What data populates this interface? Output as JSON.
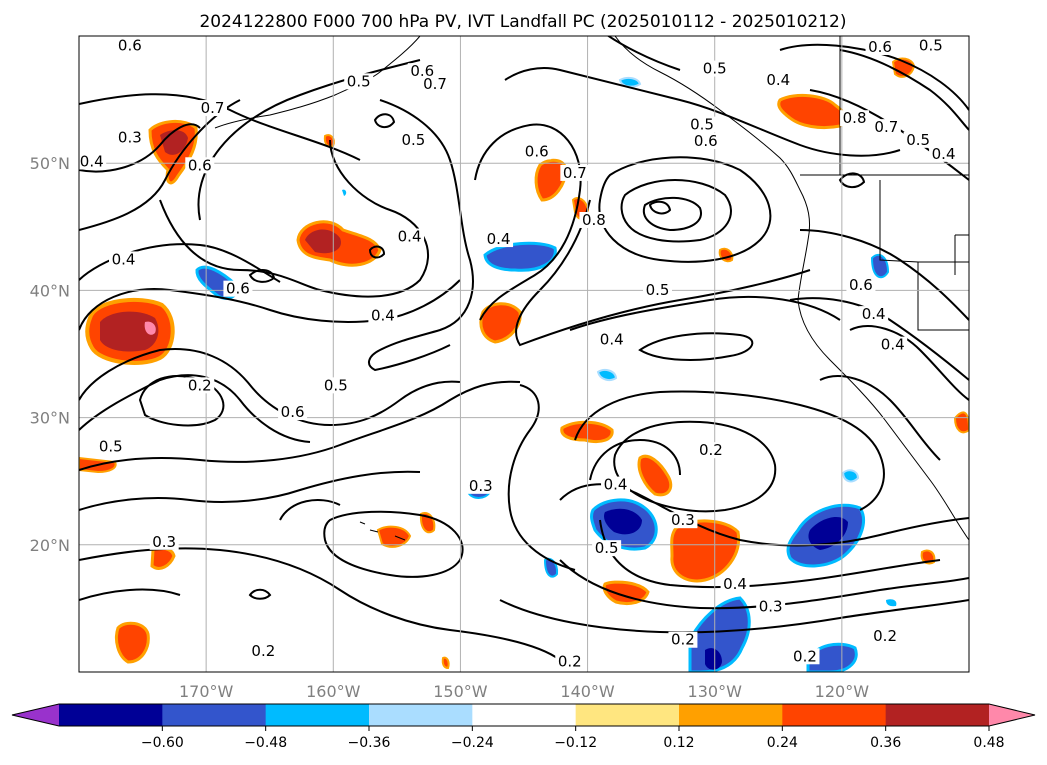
{
  "chart_data": {
    "type": "map",
    "title": "2024122800 F000 700 hPa PV, IVT Landfall PC (2025010112 - 2025010212)",
    "map_extent": {
      "lon": [
        -180,
        -110
      ],
      "lat": [
        10,
        60
      ]
    },
    "grid": true,
    "lon_ticks": [
      {
        "value": -170,
        "label": "170°W"
      },
      {
        "value": -160,
        "label": "160°W"
      },
      {
        "value": -150,
        "label": "150°W"
      },
      {
        "value": -140,
        "label": "140°W"
      },
      {
        "value": -130,
        "label": "130°W"
      },
      {
        "value": -120,
        "label": "120°W"
      }
    ],
    "lat_ticks": [
      {
        "value": 50,
        "label": "50°N"
      },
      {
        "value": 40,
        "label": "40°N"
      },
      {
        "value": 30,
        "label": "30°N"
      },
      {
        "value": 20,
        "label": "20°N"
      }
    ],
    "colorbar": {
      "orientation": "horizontal",
      "extend": "both",
      "levels": [
        -0.6,
        -0.48,
        -0.36,
        -0.24,
        -0.12,
        0.12,
        0.24,
        0.36,
        0.48,
        0.6
      ],
      "tick_labels": [
        "−0.60",
        "−0.48",
        "−0.36",
        "−0.24",
        "−0.12",
        "0.12",
        "0.24",
        "0.36",
        "0.48",
        "0.60"
      ],
      "under_color": "#9932cc",
      "over_color": "#ff88aa",
      "colors": [
        "#000096",
        "#3355cc",
        "#00bbff",
        "#aaddff",
        "#ffffff",
        "#ffe680",
        "#ffa000",
        "#ff4400",
        "#b22222"
      ]
    },
    "pv_contour_levels": [
      0.2,
      0.3,
      0.4,
      0.5,
      0.6,
      0.7,
      0.8
    ],
    "contour_labels": [
      {
        "lon": -176,
        "lat": 59.0,
        "text": "0.6"
      },
      {
        "lon": -153,
        "lat": 57.0,
        "text": "0.6"
      },
      {
        "lon": -158,
        "lat": 56.2,
        "text": "0.5"
      },
      {
        "lon": -152,
        "lat": 56.0,
        "text": "0.7"
      },
      {
        "lon": -130,
        "lat": 57.2,
        "text": "0.5"
      },
      {
        "lon": -117,
        "lat": 58.9,
        "text": "0.6"
      },
      {
        "lon": -113,
        "lat": 59.0,
        "text": "0.5"
      },
      {
        "lon": -125,
        "lat": 56.3,
        "text": "0.4"
      },
      {
        "lon": -169.5,
        "lat": 54.1,
        "text": "0.7"
      },
      {
        "lon": -176,
        "lat": 51.8,
        "text": "0.3"
      },
      {
        "lon": -179,
        "lat": 49.9,
        "text": "0.4"
      },
      {
        "lon": -170.5,
        "lat": 49.6,
        "text": "0.6"
      },
      {
        "lon": -153.7,
        "lat": 51.6,
        "text": "0.5"
      },
      {
        "lon": -144,
        "lat": 50.7,
        "text": "0.6"
      },
      {
        "lon": -141,
        "lat": 49.0,
        "text": "0.7"
      },
      {
        "lon": -139.5,
        "lat": 45.3,
        "text": "0.8"
      },
      {
        "lon": -130.7,
        "lat": 51.5,
        "text": "0.6"
      },
      {
        "lon": -131,
        "lat": 52.8,
        "text": "0.5"
      },
      {
        "lon": -119,
        "lat": 53.3,
        "text": "0.8"
      },
      {
        "lon": -116.5,
        "lat": 52.6,
        "text": "0.7"
      },
      {
        "lon": -114,
        "lat": 51.6,
        "text": "0.5"
      },
      {
        "lon": -112,
        "lat": 50.5,
        "text": "0.4"
      },
      {
        "lon": -154,
        "lat": 44.0,
        "text": "0.4"
      },
      {
        "lon": -147,
        "lat": 43.8,
        "text": "0.4"
      },
      {
        "lon": -176.5,
        "lat": 42.2,
        "text": "0.4"
      },
      {
        "lon": -167.5,
        "lat": 39.9,
        "text": "0.6"
      },
      {
        "lon": -134.5,
        "lat": 39.8,
        "text": "0.5"
      },
      {
        "lon": -156.1,
        "lat": 37.8,
        "text": "0.4"
      },
      {
        "lon": -138.1,
        "lat": 35.9,
        "text": "0.4"
      },
      {
        "lon": -118.5,
        "lat": 40.2,
        "text": "0.6"
      },
      {
        "lon": -117.5,
        "lat": 37.9,
        "text": "0.4"
      },
      {
        "lon": -116,
        "lat": 35.5,
        "text": "0.4"
      },
      {
        "lon": -170.5,
        "lat": 32.3,
        "text": "0.2"
      },
      {
        "lon": -163.2,
        "lat": 30.2,
        "text": "0.6"
      },
      {
        "lon": -159.8,
        "lat": 32.3,
        "text": "0.5"
      },
      {
        "lon": -177.5,
        "lat": 27.5,
        "text": "0.5"
      },
      {
        "lon": -130.3,
        "lat": 27.2,
        "text": "0.2"
      },
      {
        "lon": -137.8,
        "lat": 24.5,
        "text": "0.4"
      },
      {
        "lon": -148.4,
        "lat": 24.4,
        "text": "0.3"
      },
      {
        "lon": -138.5,
        "lat": 19.5,
        "text": "0.5"
      },
      {
        "lon": -132.5,
        "lat": 21.7,
        "text": "0.3"
      },
      {
        "lon": -128.4,
        "lat": 16.7,
        "text": "0.4"
      },
      {
        "lon": -125.6,
        "lat": 14.9,
        "text": "0.3"
      },
      {
        "lon": -132.5,
        "lat": 12.3,
        "text": "0.2"
      },
      {
        "lon": -173.3,
        "lat": 20.0,
        "text": "0.3"
      },
      {
        "lon": -165.5,
        "lat": 11.4,
        "text": "0.2"
      },
      {
        "lon": -141.4,
        "lat": 10.6,
        "text": "0.2"
      },
      {
        "lon": -122.9,
        "lat": 11.0,
        "text": "0.2"
      },
      {
        "lon": -116.6,
        "lat": 12.6,
        "text": "0.2"
      }
    ]
  }
}
